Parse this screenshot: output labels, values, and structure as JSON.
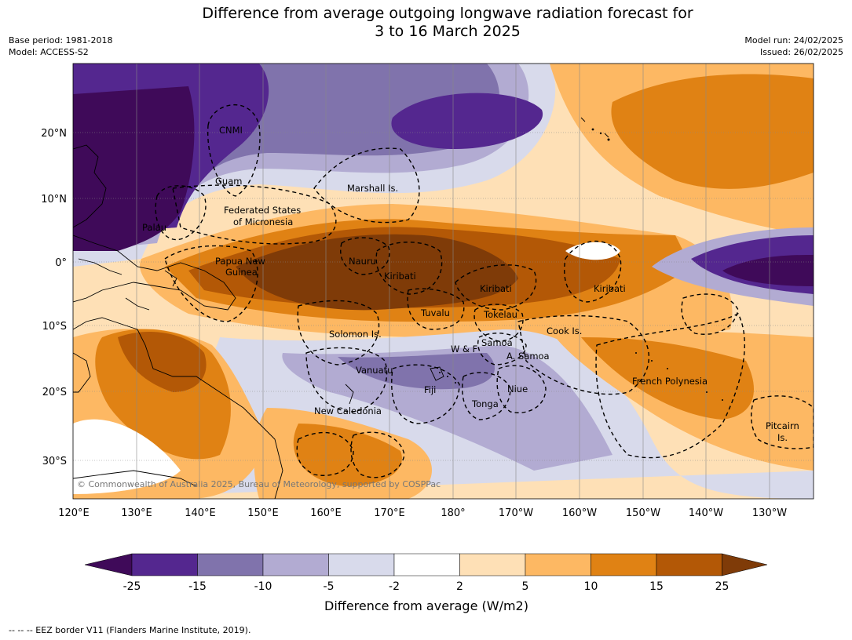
{
  "header": {
    "title_line1": "Difference from average outgoing longwave radiation forecast for",
    "title_line2": "3 to 16 March 2025",
    "base_period": "Base period: 1981-2018",
    "model": "Model: ACCESS-S2",
    "model_run": "Model run: 24/02/2025",
    "issued": "Issued: 26/02/2025"
  },
  "map": {
    "lon_ticks": [
      "120°E",
      "130°E",
      "140°E",
      "150°E",
      "160°E",
      "170°E",
      "180°",
      "170°W",
      "160°W",
      "150°W",
      "140°W",
      "130°W"
    ],
    "lat_ticks": [
      "20°N",
      "10°N",
      "0°",
      "10°S",
      "20°S",
      "30°S"
    ],
    "copyright": "© Commonwealth of Australia 2025, Bureau of Meteorology, supported by COSPPac",
    "place_labels": [
      "CNMI",
      "Guam",
      "Marshall Is.",
      "Federated States",
      "of Micronesia",
      "Palau",
      "Papua New",
      "Guinea",
      "Nauru",
      "Kiribati",
      "Kiribati",
      "Kiribati",
      "Tuvalu",
      "Tokelau",
      "Solomon Is.",
      "Cook Is.",
      "Samoa",
      "W & F",
      "A. Samoa",
      "Vanuatu",
      "Fiji",
      "Niue",
      "Tonga",
      "French Polynesia",
      "New Caledonia",
      "Pitcairn",
      "Is."
    ]
  },
  "colorbar": {
    "ticks": [
      "-25",
      "-15",
      "-10",
      "-5",
      "-2",
      "2",
      "5",
      "10",
      "15",
      "25"
    ],
    "colors": [
      "#3f0a59",
      "#54278f",
      "#8073ac",
      "#b2abd2",
      "#d8daeb",
      "#ffffff",
      "#fee0b6",
      "#fdb863",
      "#e08214",
      "#b35806",
      "#7f3b08"
    ],
    "title": "Difference from average (W/m2)"
  },
  "footnote": "--  --  -- EEZ border V11 (Flanders Marine Institute, 2019)."
}
